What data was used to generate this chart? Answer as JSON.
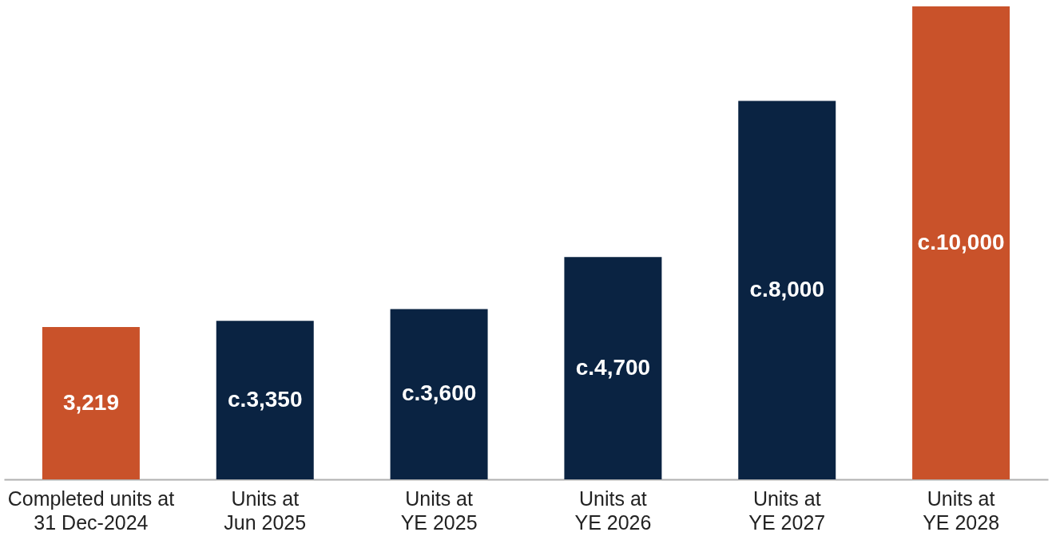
{
  "chart_data": {
    "type": "bar",
    "categories": [
      "Completed units at\n31 Dec-2024",
      "Units at\nJun 2025",
      "Units at\nYE 2025",
      "Units at\nYE 2026",
      "Units at\nYE 2027",
      "Units at\nYE 2028"
    ],
    "values": [
      3219,
      3350,
      3600,
      4700,
      8000,
      10000
    ],
    "colors": [
      "#c9522a",
      "#0a2342",
      "#0a2342",
      "#0a2342",
      "#0a2342",
      "#c9522a"
    ],
    "value_labels": [
      "3,219",
      "c.3,350",
      "c.3,600",
      "c.4,700",
      "c.8,000",
      "c.10,000"
    ]
  }
}
